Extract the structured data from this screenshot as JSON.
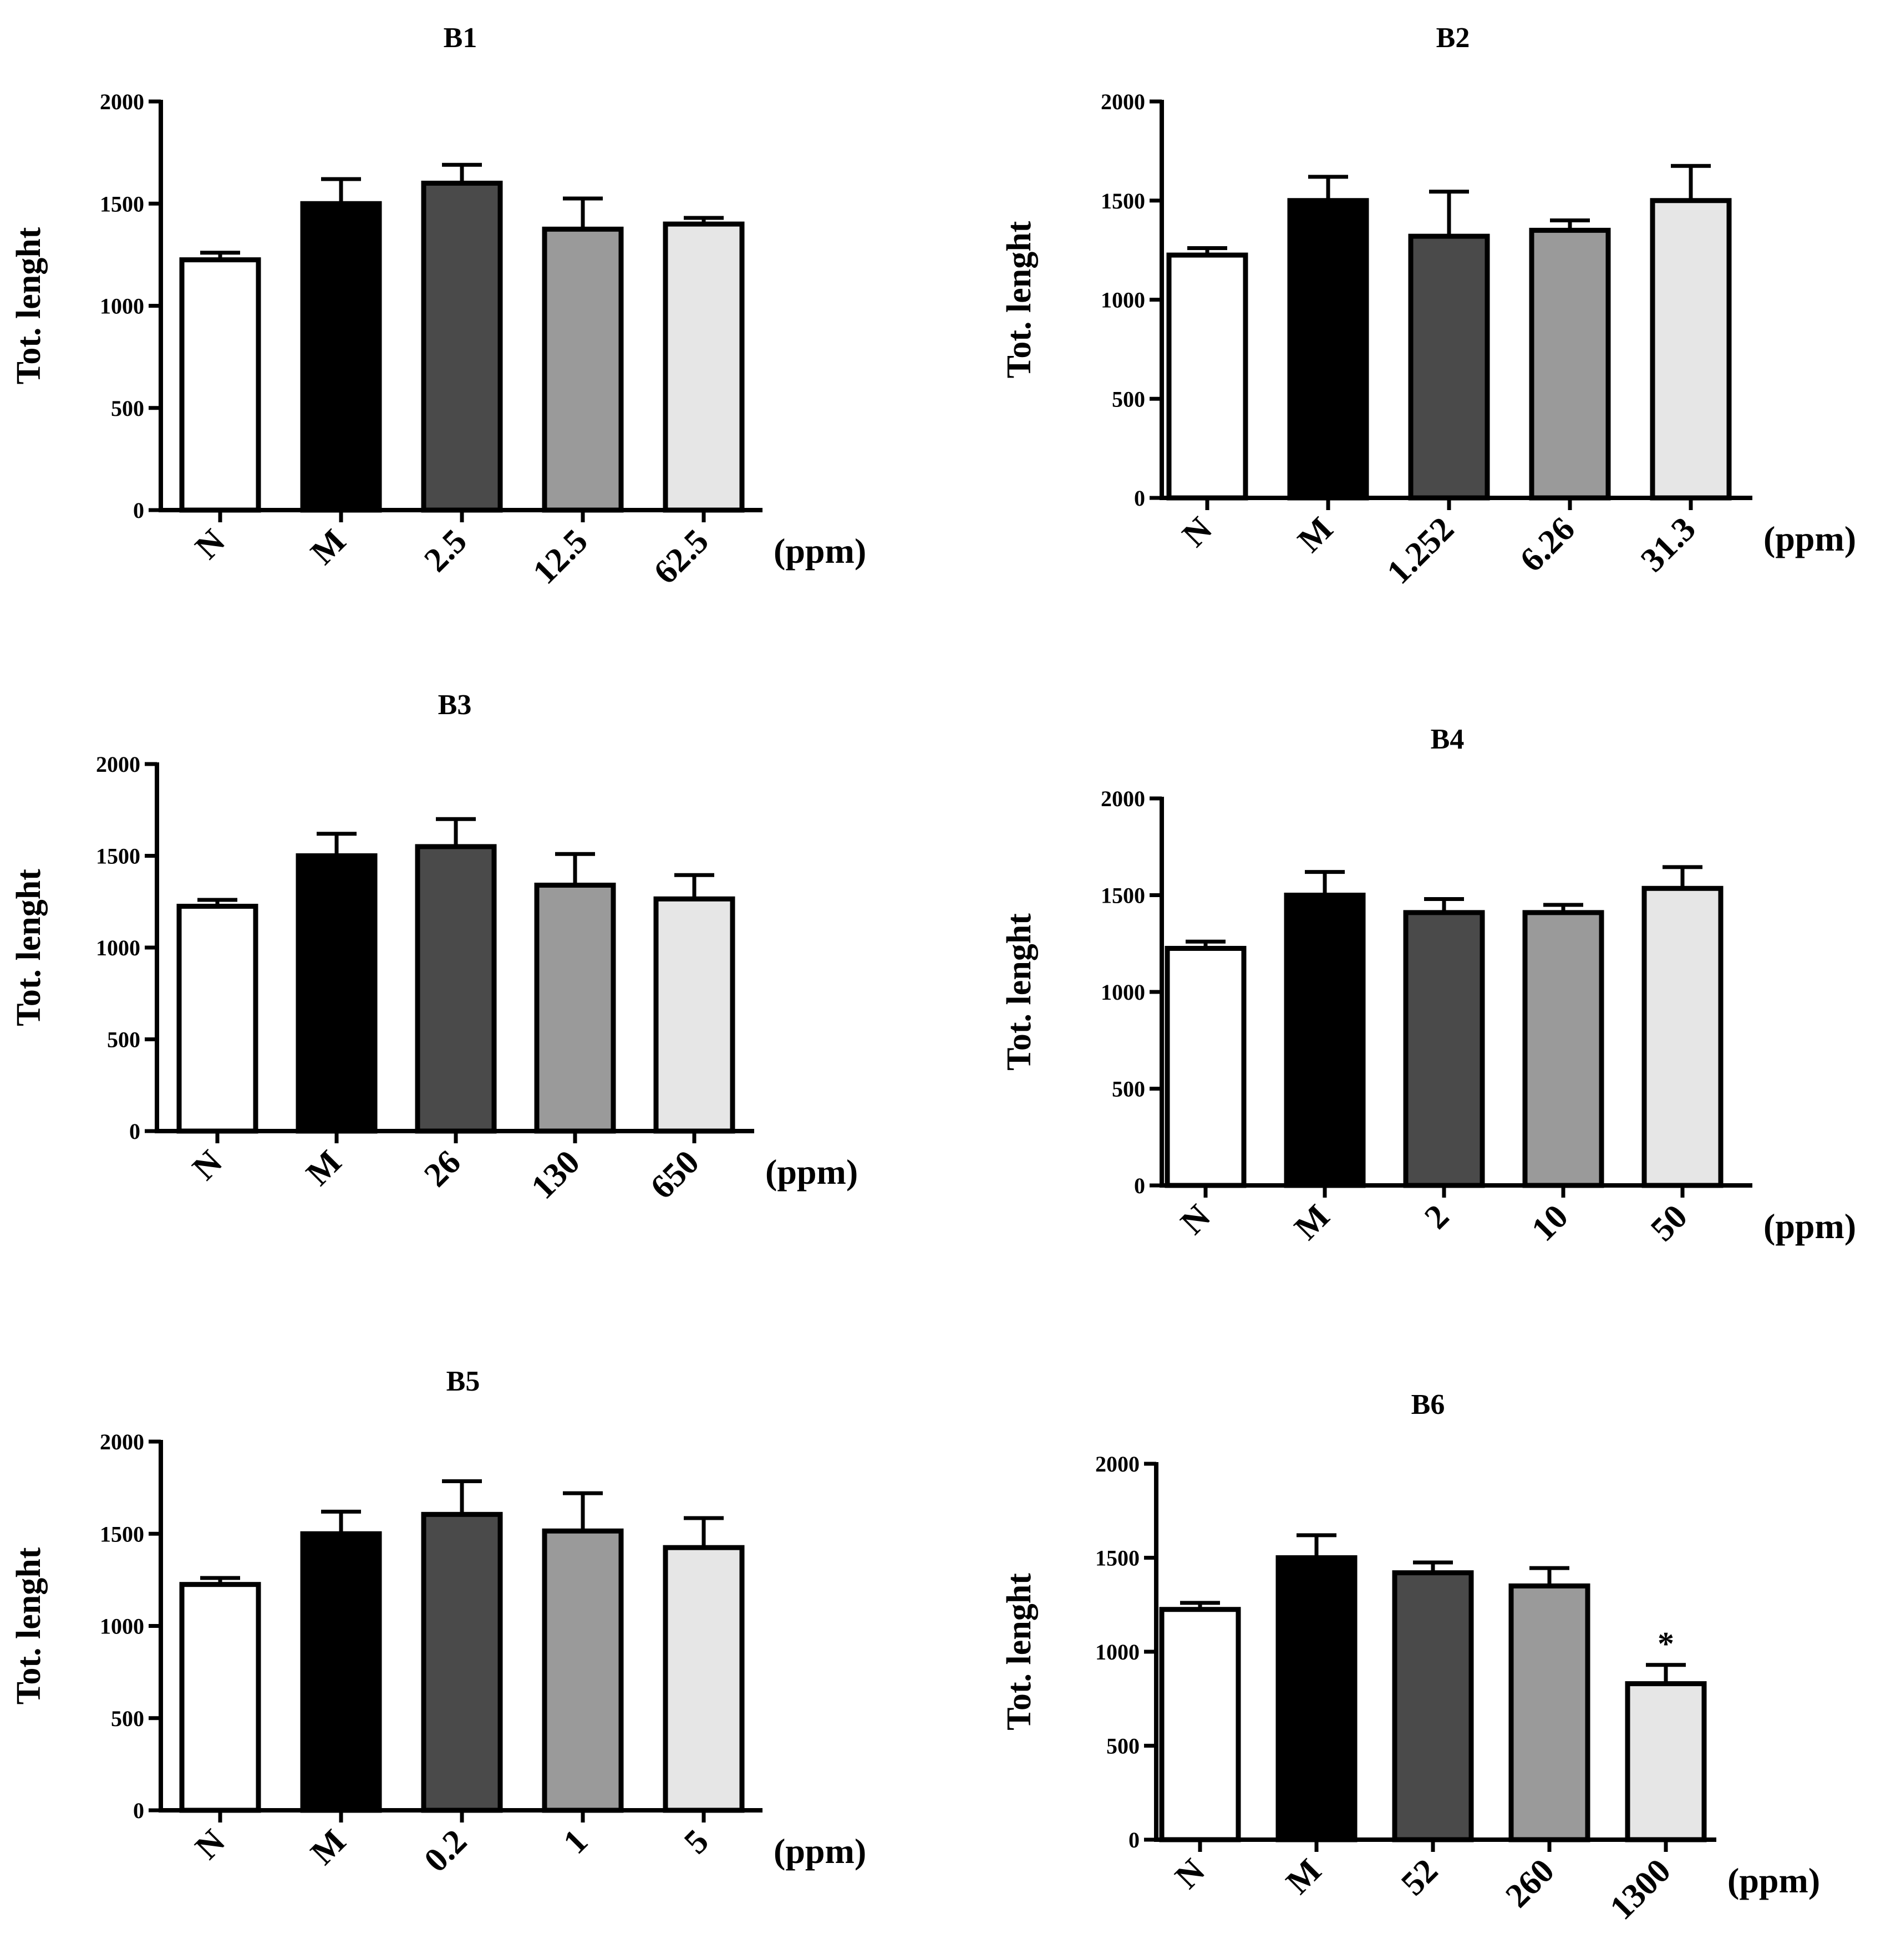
{
  "colors": {
    "bar_fills": [
      "#ffffff",
      "#000000",
      "#4a4a4a",
      "#9a9a9a",
      "#e6e6e6"
    ],
    "stroke": "#000000"
  },
  "chart_data": [
    {
      "type": "bar",
      "title": "B1",
      "ylabel": "Tot. lenght",
      "unit": "(ppm)",
      "categories": [
        "N",
        "M",
        "2.5",
        "12.5",
        "62.5"
      ],
      "values": [
        1225,
        1500,
        1600,
        1375,
        1400
      ],
      "errors": [
        35,
        120,
        90,
        150,
        30
      ],
      "annotations": [
        "",
        "",
        "",
        "",
        ""
      ],
      "ylim": [
        0,
        2000
      ],
      "yticks": [
        0,
        500,
        1000,
        1500,
        2000
      ]
    },
    {
      "type": "bar",
      "title": "B2",
      "ylabel": "Tot. lenght",
      "unit": "(ppm)",
      "categories": [
        "N",
        "M",
        "1.252",
        "6.26",
        "31.3"
      ],
      "values": [
        1225,
        1500,
        1320,
        1350,
        1500
      ],
      "errors": [
        35,
        120,
        225,
        50,
        175
      ],
      "annotations": [
        "",
        "",
        "",
        "",
        ""
      ],
      "ylim": [
        0,
        2000
      ],
      "yticks": [
        0,
        500,
        1000,
        1500,
        2000
      ]
    },
    {
      "type": "bar",
      "title": "B3",
      "ylabel": "Tot. lenght",
      "unit": "(ppm)",
      "categories": [
        "N",
        "M",
        "26",
        "130",
        "650"
      ],
      "values": [
        1225,
        1500,
        1550,
        1340,
        1265
      ],
      "errors": [
        35,
        120,
        150,
        170,
        130
      ],
      "annotations": [
        "",
        "",
        "",
        "",
        ""
      ],
      "ylim": [
        0,
        2000
      ],
      "yticks": [
        0,
        500,
        1000,
        1500,
        2000
      ]
    },
    {
      "type": "bar",
      "title": "B4",
      "ylabel": "Tot. lenght",
      "unit": "(ppm)",
      "categories": [
        "N",
        "M",
        "2",
        "10",
        "50"
      ],
      "values": [
        1225,
        1500,
        1410,
        1410,
        1535
      ],
      "errors": [
        35,
        120,
        70,
        40,
        110
      ],
      "annotations": [
        "",
        "",
        "",
        "",
        ""
      ],
      "ylim": [
        0,
        2000
      ],
      "yticks": [
        0,
        500,
        1000,
        1500,
        2000
      ]
    },
    {
      "type": "bar",
      "title": "B5",
      "ylabel": "Tot. lenght",
      "unit": "(ppm)",
      "categories": [
        "N",
        "M",
        "0.2",
        "1",
        "5"
      ],
      "values": [
        1225,
        1500,
        1605,
        1515,
        1425
      ],
      "errors": [
        35,
        120,
        180,
        205,
        160
      ],
      "annotations": [
        "",
        "",
        "",
        "",
        ""
      ],
      "ylim": [
        0,
        2000
      ],
      "yticks": [
        0,
        500,
        1000,
        1500,
        2000
      ]
    },
    {
      "type": "bar",
      "title": "B6",
      "ylabel": "Tot. lenght",
      "unit": "(ppm)",
      "categories": [
        "N",
        "M",
        "52",
        "260",
        "1300"
      ],
      "values": [
        1225,
        1500,
        1420,
        1350,
        830
      ],
      "errors": [
        35,
        120,
        55,
        95,
        100
      ],
      "annotations": [
        "",
        "",
        "",
        "",
        "*"
      ],
      "ylim": [
        0,
        2000
      ],
      "yticks": [
        0,
        500,
        1000,
        1500,
        2000
      ]
    }
  ]
}
